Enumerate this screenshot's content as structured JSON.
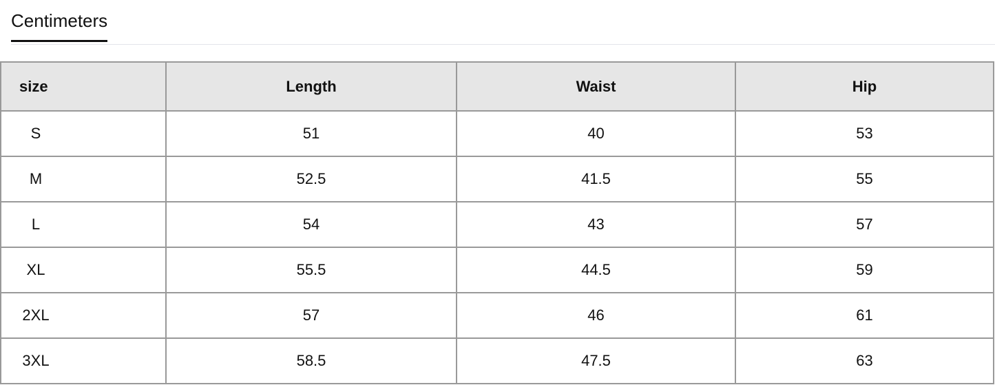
{
  "tabs": [
    {
      "label": "Centimeters",
      "active": true
    }
  ],
  "table": {
    "headers": [
      "size",
      "Length",
      "Waist",
      "Hip"
    ],
    "rows": [
      [
        "S",
        "51",
        "40",
        "53"
      ],
      [
        "M",
        "52.5",
        "41.5",
        "55"
      ],
      [
        "L",
        "54",
        "43",
        "57"
      ],
      [
        "XL",
        "55.5",
        "44.5",
        "59"
      ],
      [
        "2XL",
        "57",
        "46",
        "61"
      ],
      [
        "3XL",
        "58.5",
        "47.5",
        "63"
      ]
    ]
  }
}
